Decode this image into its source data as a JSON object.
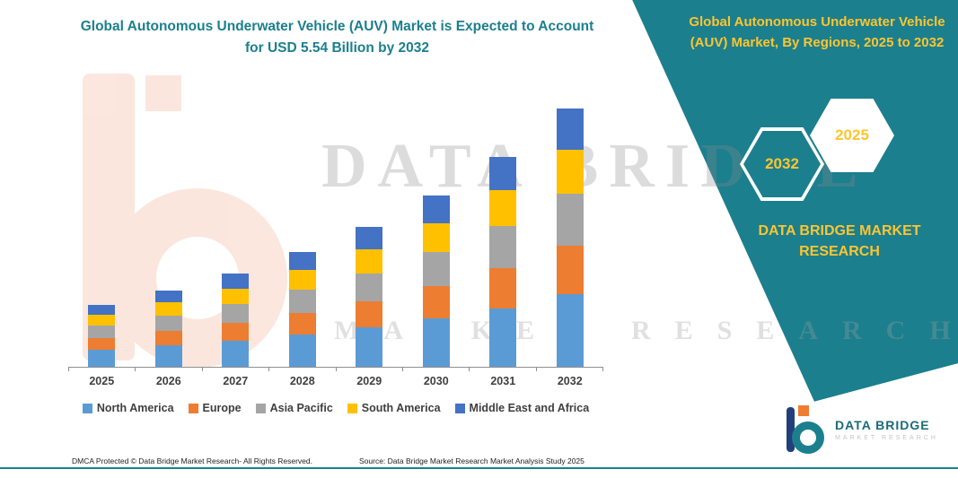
{
  "page": {
    "bg": "#ffffff",
    "teal": "#1b7f8e",
    "yellow": "#fdc52f"
  },
  "left": {
    "title": "Global Autonomous Underwater Vehicle (AUV) Market is Expected to Account for USD 5.54 Billion by 2032"
  },
  "right_panel": {
    "heading": "Global Autonomous Underwater Vehicle (AUV) Market, By Regions, 2025 to 2032",
    "hexagon_left": "2032",
    "hexagon_right": "2025",
    "brand_text": "DATA BRIDGE MARKET RESEARCH"
  },
  "watermark": {
    "row1": "DATA BRIDGE",
    "row2": "MARKET RESEARCH"
  },
  "footer": {
    "left": "DMCA Protected © Data Bridge Market Research-  All Rights Reserved.",
    "right": "Source: Data Bridge Market Research  Market Analysis Study 2025"
  },
  "brand_logo": {
    "name": "DATA BRIDGE",
    "subtitle": "MARKET RESEARCH"
  },
  "chart_data": {
    "type": "bar",
    "stacked": true,
    "title": "Global Autonomous Underwater Vehicle (AUV) Market is Expected to Account for USD 5.54 Billion by 2032",
    "unit": "USD Billion",
    "categories": [
      "2025",
      "2026",
      "2027",
      "2028",
      "2029",
      "2030",
      "2031",
      "2032"
    ],
    "series": [
      {
        "name": "North America",
        "color": "#5B9BD5",
        "values": [
          0.37,
          0.46,
          0.56,
          0.69,
          0.84,
          1.03,
          1.26,
          1.55
        ]
      },
      {
        "name": "Europe",
        "color": "#ED7D31",
        "values": [
          0.25,
          0.31,
          0.38,
          0.47,
          0.57,
          0.7,
          0.86,
          1.05
        ]
      },
      {
        "name": "Asia Pacific",
        "color": "#A5A5A5",
        "values": [
          0.27,
          0.33,
          0.4,
          0.49,
          0.6,
          0.73,
          0.9,
          1.11
        ]
      },
      {
        "name": "South America",
        "color": "#FFC000",
        "values": [
          0.23,
          0.28,
          0.34,
          0.42,
          0.51,
          0.62,
          0.77,
          0.94
        ]
      },
      {
        "name": "Middle East and Africa",
        "color": "#4472C4",
        "values": [
          0.21,
          0.26,
          0.32,
          0.39,
          0.48,
          0.59,
          0.72,
          0.89
        ]
      }
    ],
    "totals": [
      1.33,
      1.63,
      2.0,
      2.45,
      3.0,
      3.67,
      4.5,
      5.54
    ],
    "ylim": [
      0,
      5.6
    ],
    "grid": false,
    "legend_position": "bottom"
  }
}
